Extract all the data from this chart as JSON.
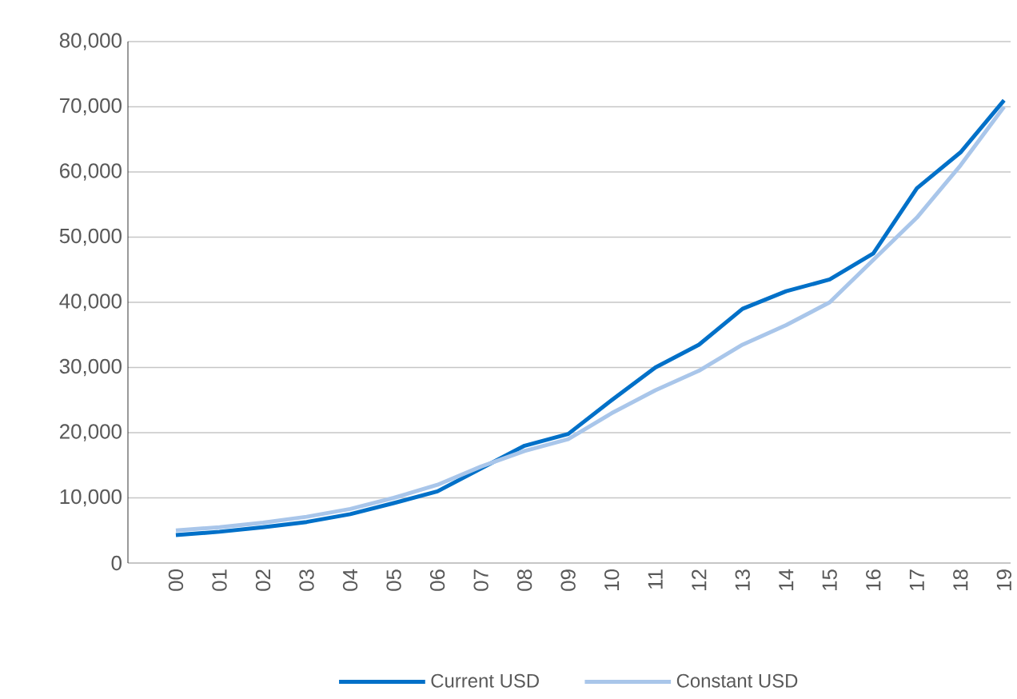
{
  "chart_data": {
    "type": "line",
    "categories": [
      "00",
      "01",
      "02",
      "03",
      "04",
      "05",
      "06",
      "07",
      "08",
      "09",
      "10",
      "11",
      "12",
      "13",
      "14",
      "15",
      "16",
      "17",
      "18",
      "19"
    ],
    "series": [
      {
        "name": "Current USD",
        "color": "#0070c8",
        "values": [
          4300,
          4800,
          5500,
          6300,
          7500,
          9200,
          11000,
          14500,
          18000,
          19800,
          25000,
          30000,
          33500,
          39000,
          41700,
          43500,
          47500,
          57500,
          63000,
          71000
        ]
      },
      {
        "name": "Constant USD",
        "color": "#a9c6ea",
        "values": [
          5000,
          5500,
          6200,
          7100,
          8300,
          10000,
          12000,
          14800,
          17200,
          19000,
          23000,
          26500,
          29500,
          33500,
          36500,
          40000,
          46500,
          53000,
          61000,
          70000
        ]
      }
    ],
    "ylim": [
      0,
      80000
    ],
    "yticks": [
      0,
      {
        "value": 10000,
        "label": "10,000"
      },
      {
        "value": 20000,
        "label": "20,000"
      },
      {
        "value": 30000,
        "label": "30,000"
      },
      {
        "value": 40000,
        "label": "40,000"
      },
      {
        "value": 50000,
        "label": "50,000"
      },
      {
        "value": 60000,
        "label": "60,000"
      },
      {
        "value": 70000,
        "label": "70,000"
      },
      {
        "value": 80000,
        "label": "80,000"
      }
    ],
    "grid": "y",
    "legend": "bottom",
    "marker": "none",
    "line_style": "solid"
  }
}
